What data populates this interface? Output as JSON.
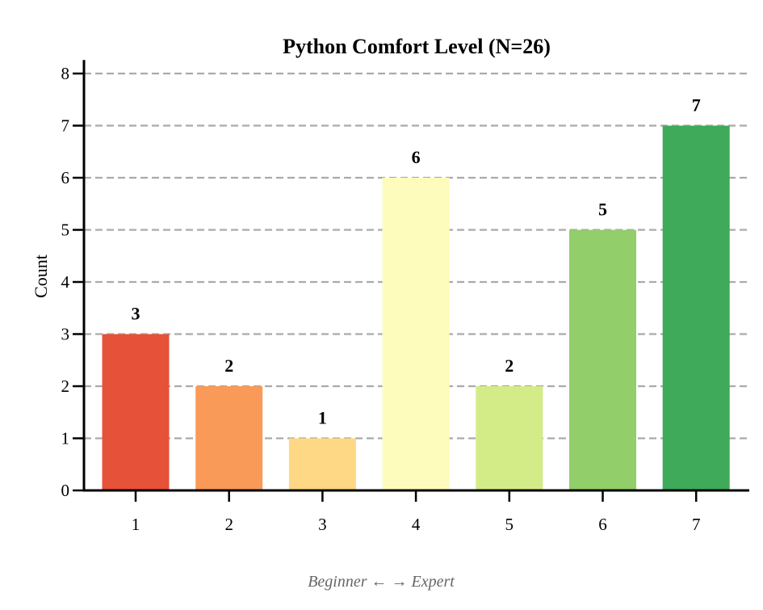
{
  "chart_data": {
    "type": "bar",
    "title": "Python Comfort Level (N=26)",
    "xlabel": "Beginner ← → Expert",
    "ylabel": "Count",
    "categories": [
      "1",
      "2",
      "3",
      "4",
      "5",
      "6",
      "7"
    ],
    "values": [
      3,
      2,
      1,
      6,
      2,
      5,
      7
    ],
    "data_labels": [
      "3",
      "2",
      "1",
      "6",
      "2",
      "5",
      "7"
    ],
    "colors": [
      "#e6513a",
      "#fa9a58",
      "#fed884",
      "#fefcbc",
      "#d3ec88",
      "#92ce6a",
      "#3faa5a"
    ],
    "yticks": [
      "0",
      "1",
      "2",
      "3",
      "4",
      "5",
      "6",
      "7",
      "8"
    ],
    "ylim": [
      0,
      8.26
    ],
    "grid": "horizontal dashed",
    "legend": "none"
  }
}
